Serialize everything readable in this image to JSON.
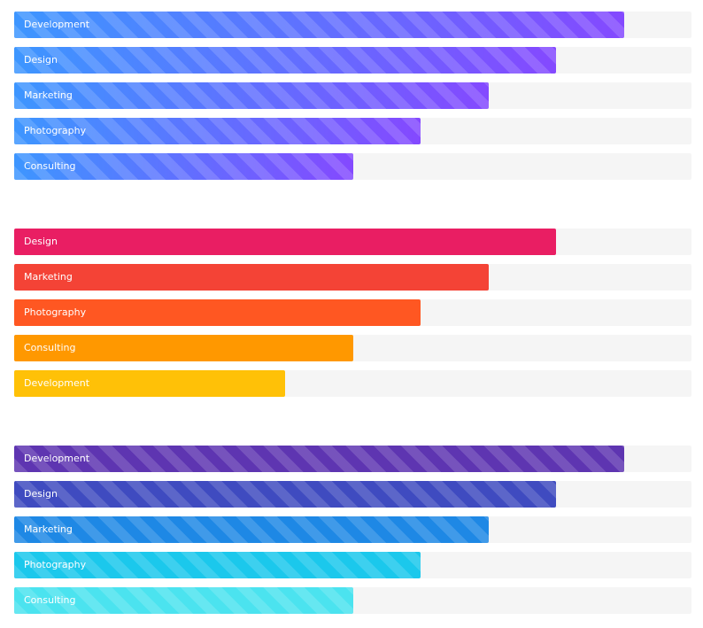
{
  "chart_data": [
    {
      "type": "bar",
      "orientation": "horizontal",
      "style": "striped-gradient",
      "categories": [
        "Development",
        "Design",
        "Marketing",
        "Photography",
        "Consulting"
      ],
      "values": [
        90,
        80,
        70,
        60,
        50
      ],
      "xlim": [
        0,
        100
      ],
      "colors": [
        "#3d96ff",
        "#8449ff"
      ]
    },
    {
      "type": "bar",
      "orientation": "horizontal",
      "style": "solid",
      "categories": [
        "Design",
        "Marketing",
        "Photography",
        "Consulting",
        "Development"
      ],
      "values": [
        80,
        70,
        60,
        50,
        40
      ],
      "xlim": [
        0,
        100
      ],
      "colors": [
        "#e91e63",
        "#f44336",
        "#ff5722",
        "#ff9800",
        "#ffc107"
      ]
    },
    {
      "type": "bar",
      "orientation": "horizontal",
      "style": "striped",
      "categories": [
        "Development",
        "Design",
        "Marketing",
        "Photography",
        "Consulting"
      ],
      "values": [
        90,
        80,
        70,
        60,
        50
      ],
      "xlim": [
        0,
        100
      ],
      "colors": [
        "#5e35b1",
        "#3f4bc0",
        "#1e88e5",
        "#1bc8ec",
        "#4be3ef"
      ]
    }
  ]
}
